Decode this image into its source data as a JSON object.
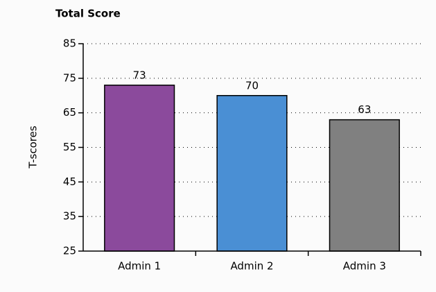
{
  "chart_data": {
    "type": "bar",
    "title": "Total Score",
    "ylabel": "T-scores",
    "categories": [
      "Admin 1",
      "Admin 2",
      "Admin 3"
    ],
    "values": [
      73,
      70,
      63
    ],
    "colors": [
      "#8b4a9c",
      "#4a8fd4",
      "#808080"
    ],
    "ylim": [
      25,
      85
    ],
    "yticks": [
      25,
      35,
      45,
      55,
      65,
      75,
      85
    ],
    "grid": true
  }
}
